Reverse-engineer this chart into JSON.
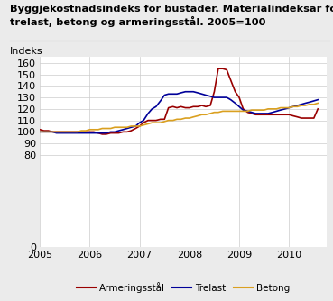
{
  "title_line1": "Byggjekostnadsindeks for bustader. Materialindeksar for",
  "title_line2": "trelast, betong og armeringsstål. 2005=100",
  "ylabel": "Indeks",
  "background_color": "#ebebeb",
  "plot_bg_color": "#ffffff",
  "grid_color": "#cccccc",
  "yticks": [
    0,
    80,
    90,
    100,
    110,
    120,
    130,
    140,
    150,
    160
  ],
  "ylim": [
    0,
    165
  ],
  "xlim": [
    2005.0,
    2010.75
  ],
  "xticks": [
    2005,
    2006,
    2007,
    2008,
    2009,
    2010
  ],
  "series": {
    "Armeringsstål": {
      "color": "#990000",
      "data": [
        [
          2005.0,
          102
        ],
        [
          2005.08,
          101
        ],
        [
          2005.17,
          101
        ],
        [
          2005.25,
          100
        ],
        [
          2005.33,
          100
        ],
        [
          2005.42,
          100
        ],
        [
          2005.5,
          100
        ],
        [
          2005.58,
          100
        ],
        [
          2005.67,
          100
        ],
        [
          2005.75,
          100
        ],
        [
          2005.83,
          100
        ],
        [
          2005.92,
          100
        ],
        [
          2006.0,
          100
        ],
        [
          2006.08,
          100
        ],
        [
          2006.17,
          99
        ],
        [
          2006.25,
          98
        ],
        [
          2006.33,
          98
        ],
        [
          2006.42,
          99
        ],
        [
          2006.5,
          99
        ],
        [
          2006.58,
          99
        ],
        [
          2006.67,
          100
        ],
        [
          2006.75,
          100
        ],
        [
          2006.83,
          101
        ],
        [
          2006.92,
          103
        ],
        [
          2007.0,
          105
        ],
        [
          2007.08,
          108
        ],
        [
          2007.17,
          110
        ],
        [
          2007.25,
          110
        ],
        [
          2007.33,
          110
        ],
        [
          2007.42,
          111
        ],
        [
          2007.5,
          111
        ],
        [
          2007.58,
          121
        ],
        [
          2007.67,
          122
        ],
        [
          2007.75,
          121
        ],
        [
          2007.83,
          122
        ],
        [
          2007.92,
          121
        ],
        [
          2008.0,
          121
        ],
        [
          2008.08,
          122
        ],
        [
          2008.17,
          122
        ],
        [
          2008.25,
          123
        ],
        [
          2008.33,
          122
        ],
        [
          2008.42,
          123
        ],
        [
          2008.5,
          135
        ],
        [
          2008.58,
          155
        ],
        [
          2008.67,
          155
        ],
        [
          2008.75,
          154
        ],
        [
          2008.83,
          145
        ],
        [
          2008.92,
          135
        ],
        [
          2009.0,
          130
        ],
        [
          2009.08,
          120
        ],
        [
          2009.17,
          117
        ],
        [
          2009.25,
          116
        ],
        [
          2009.33,
          115
        ],
        [
          2009.42,
          115
        ],
        [
          2009.5,
          115
        ],
        [
          2009.58,
          115
        ],
        [
          2009.67,
          115
        ],
        [
          2009.75,
          115
        ],
        [
          2009.83,
          115
        ],
        [
          2009.92,
          115
        ],
        [
          2010.0,
          115
        ],
        [
          2010.08,
          114
        ],
        [
          2010.17,
          113
        ],
        [
          2010.25,
          112
        ],
        [
          2010.33,
          112
        ],
        [
          2010.42,
          112
        ],
        [
          2010.5,
          112
        ],
        [
          2010.58,
          120
        ]
      ]
    },
    "Trelast": {
      "color": "#000099",
      "data": [
        [
          2005.0,
          100
        ],
        [
          2005.08,
          100
        ],
        [
          2005.17,
          100
        ],
        [
          2005.25,
          100
        ],
        [
          2005.33,
          99
        ],
        [
          2005.42,
          99
        ],
        [
          2005.5,
          99
        ],
        [
          2005.58,
          99
        ],
        [
          2005.67,
          99
        ],
        [
          2005.75,
          99
        ],
        [
          2005.83,
          99
        ],
        [
          2005.92,
          99
        ],
        [
          2006.0,
          99
        ],
        [
          2006.08,
          99
        ],
        [
          2006.17,
          99
        ],
        [
          2006.25,
          99
        ],
        [
          2006.33,
          99
        ],
        [
          2006.42,
          100
        ],
        [
          2006.5,
          100
        ],
        [
          2006.58,
          101
        ],
        [
          2006.67,
          102
        ],
        [
          2006.75,
          103
        ],
        [
          2006.83,
          104
        ],
        [
          2006.92,
          105
        ],
        [
          2007.0,
          108
        ],
        [
          2007.08,
          110
        ],
        [
          2007.17,
          116
        ],
        [
          2007.25,
          120
        ],
        [
          2007.33,
          122
        ],
        [
          2007.42,
          127
        ],
        [
          2007.5,
          132
        ],
        [
          2007.58,
          133
        ],
        [
          2007.67,
          133
        ],
        [
          2007.75,
          133
        ],
        [
          2007.83,
          134
        ],
        [
          2007.92,
          135
        ],
        [
          2008.0,
          135
        ],
        [
          2008.08,
          135
        ],
        [
          2008.17,
          134
        ],
        [
          2008.25,
          133
        ],
        [
          2008.33,
          132
        ],
        [
          2008.42,
          131
        ],
        [
          2008.5,
          130
        ],
        [
          2008.58,
          130
        ],
        [
          2008.67,
          130
        ],
        [
          2008.75,
          130
        ],
        [
          2008.83,
          128
        ],
        [
          2008.92,
          125
        ],
        [
          2009.0,
          122
        ],
        [
          2009.08,
          119
        ],
        [
          2009.17,
          118
        ],
        [
          2009.25,
          117
        ],
        [
          2009.33,
          116
        ],
        [
          2009.42,
          116
        ],
        [
          2009.5,
          116
        ],
        [
          2009.58,
          116
        ],
        [
          2009.67,
          117
        ],
        [
          2009.75,
          118
        ],
        [
          2009.83,
          119
        ],
        [
          2009.92,
          120
        ],
        [
          2010.0,
          121
        ],
        [
          2010.08,
          122
        ],
        [
          2010.17,
          123
        ],
        [
          2010.25,
          124
        ],
        [
          2010.33,
          125
        ],
        [
          2010.42,
          126
        ],
        [
          2010.5,
          127
        ],
        [
          2010.58,
          128
        ]
      ]
    },
    "Betong": {
      "color": "#DAA020",
      "data": [
        [
          2005.0,
          100
        ],
        [
          2005.08,
          100
        ],
        [
          2005.17,
          100
        ],
        [
          2005.25,
          100
        ],
        [
          2005.33,
          100
        ],
        [
          2005.42,
          100
        ],
        [
          2005.5,
          100
        ],
        [
          2005.58,
          100
        ],
        [
          2005.67,
          100
        ],
        [
          2005.75,
          100
        ],
        [
          2005.83,
          101
        ],
        [
          2005.92,
          101
        ],
        [
          2006.0,
          102
        ],
        [
          2006.08,
          102
        ],
        [
          2006.17,
          102
        ],
        [
          2006.25,
          103
        ],
        [
          2006.33,
          103
        ],
        [
          2006.42,
          103
        ],
        [
          2006.5,
          104
        ],
        [
          2006.58,
          104
        ],
        [
          2006.67,
          104
        ],
        [
          2006.75,
          104
        ],
        [
          2006.83,
          105
        ],
        [
          2006.92,
          105
        ],
        [
          2007.0,
          105
        ],
        [
          2007.08,
          106
        ],
        [
          2007.17,
          107
        ],
        [
          2007.25,
          108
        ],
        [
          2007.33,
          108
        ],
        [
          2007.42,
          108
        ],
        [
          2007.5,
          109
        ],
        [
          2007.58,
          110
        ],
        [
          2007.67,
          110
        ],
        [
          2007.75,
          111
        ],
        [
          2007.83,
          111
        ],
        [
          2007.92,
          112
        ],
        [
          2008.0,
          112
        ],
        [
          2008.08,
          113
        ],
        [
          2008.17,
          114
        ],
        [
          2008.25,
          115
        ],
        [
          2008.33,
          115
        ],
        [
          2008.42,
          116
        ],
        [
          2008.5,
          117
        ],
        [
          2008.58,
          117
        ],
        [
          2008.67,
          118
        ],
        [
          2008.75,
          118
        ],
        [
          2008.83,
          118
        ],
        [
          2008.92,
          118
        ],
        [
          2009.0,
          118
        ],
        [
          2009.08,
          118
        ],
        [
          2009.17,
          118
        ],
        [
          2009.25,
          119
        ],
        [
          2009.33,
          119
        ],
        [
          2009.42,
          119
        ],
        [
          2009.5,
          119
        ],
        [
          2009.58,
          120
        ],
        [
          2009.67,
          120
        ],
        [
          2009.75,
          120
        ],
        [
          2009.83,
          121
        ],
        [
          2009.92,
          121
        ],
        [
          2010.0,
          121
        ],
        [
          2010.08,
          122
        ],
        [
          2010.17,
          122
        ],
        [
          2010.25,
          123
        ],
        [
          2010.33,
          123
        ],
        [
          2010.42,
          124
        ],
        [
          2010.5,
          124
        ],
        [
          2010.58,
          125
        ]
      ]
    }
  },
  "legend_order": [
    "Armeringsstål",
    "Trelast",
    "Betong"
  ]
}
